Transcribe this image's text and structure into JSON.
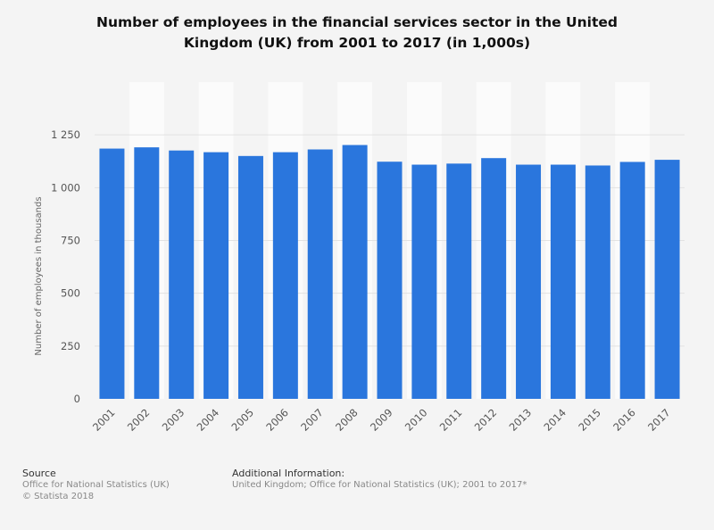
{
  "title_lines": [
    "Number of employees in the financial services sector in the United",
    "Kingdom (UK) from 2001 to 2017 (in 1,000s)"
  ],
  "chart_data": {
    "type": "bar",
    "categories": [
      "2001",
      "2002",
      "2003",
      "2004",
      "2005",
      "2006",
      "2007",
      "2008",
      "2009",
      "2010",
      "2011",
      "2012",
      "2013",
      "2014",
      "2015",
      "2016",
      "2017"
    ],
    "values": [
      1185,
      1191,
      1176,
      1168,
      1150,
      1168,
      1181,
      1202,
      1123,
      1109,
      1114,
      1140,
      1109,
      1109,
      1105,
      1122,
      1132
    ],
    "ylabel": "Number of employees in thousands",
    "ylim": [
      0,
      1500
    ],
    "yticks": [
      0,
      250,
      500,
      750,
      1000,
      1250
    ],
    "ytick_labels": [
      "0",
      "250",
      "500",
      "750",
      "1 000",
      "1 250"
    ],
    "bar_color": "#2a76dd",
    "grid": true
  },
  "footer": {
    "source_heading": "Source",
    "source_lines": [
      "Office for National Statistics (UK)",
      "© Statista 2018"
    ],
    "info_heading": "Additional Information:",
    "info_line": "United Kingdom; Office for National Statistics (UK); 2001 to 2017*"
  }
}
